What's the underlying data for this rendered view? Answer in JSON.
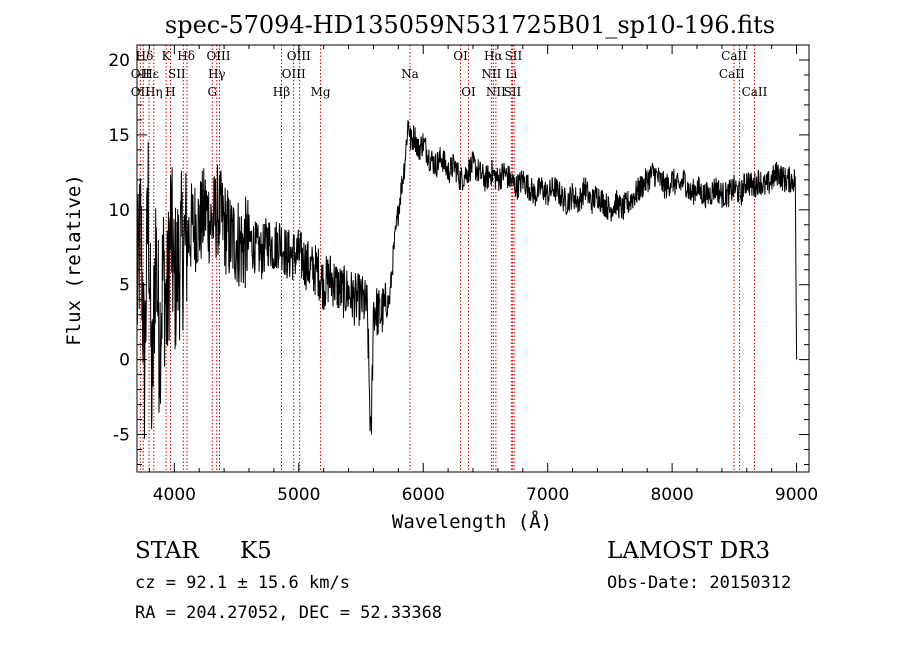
{
  "chart_data": {
    "type": "line",
    "title": "spec-57094-HD135059N531725B01_sp10-196.fits",
    "xlabel": "Wavelength (Å)",
    "ylabel": "Flux (relative)",
    "xlim": [
      3700,
      9100
    ],
    "ylim": [
      -7.5,
      21
    ],
    "xticks": [
      4000,
      5000,
      6000,
      7000,
      8000,
      9000
    ],
    "yticks": [
      -5,
      0,
      5,
      10,
      15,
      20
    ],
    "grid": false,
    "series": [
      {
        "name": "flux",
        "x": [
          3700,
          3730,
          3760,
          3790,
          3820,
          3850,
          3880,
          3910,
          3940,
          3970,
          4000,
          4050,
          4100,
          4150,
          4200,
          4250,
          4300,
          4350,
          4400,
          4450,
          4500,
          4550,
          4600,
          4650,
          4700,
          4750,
          4800,
          4850,
          4900,
          4950,
          5000,
          5050,
          5100,
          5150,
          5200,
          5250,
          5300,
          5350,
          5400,
          5450,
          5500,
          5550,
          5580,
          5600,
          5650,
          5700,
          5730,
          5760,
          5800,
          5850,
          5880,
          5900,
          5930,
          5960,
          6000,
          6050,
          6100,
          6150,
          6200,
          6250,
          6300,
          6350,
          6400,
          6450,
          6500,
          6550,
          6600,
          6650,
          6700,
          6750,
          6800,
          6850,
          6900,
          6950,
          7000,
          7050,
          7100,
          7150,
          7200,
          7250,
          7300,
          7350,
          7400,
          7450,
          7500,
          7550,
          7600,
          7650,
          7700,
          7750,
          7800,
          7850,
          7900,
          7950,
          8000,
          8050,
          8100,
          8150,
          8200,
          8250,
          8300,
          8350,
          8400,
          8450,
          8500,
          8550,
          8600,
          8650,
          8700,
          8750,
          8800,
          8850,
          8900,
          8950,
          8990,
          9000
        ],
        "y": [
          4,
          9,
          -1,
          11,
          -3,
          8,
          1,
          6,
          3,
          9,
          5,
          7,
          8,
          9,
          9,
          10,
          9,
          10,
          9,
          8,
          8,
          7.5,
          8,
          7.5,
          7,
          8,
          7.5,
          8,
          7,
          7,
          7,
          6.5,
          6,
          6,
          5,
          5.5,
          5,
          4.5,
          4.5,
          4,
          4,
          3.5,
          -6,
          3.5,
          3,
          3.5,
          4,
          7,
          10,
          13,
          16,
          14.5,
          15,
          14,
          14.5,
          13.5,
          13,
          13.5,
          12.5,
          13,
          12,
          12.5,
          13,
          12.5,
          12,
          12.5,
          12,
          12.5,
          12,
          11.5,
          12,
          11.5,
          11,
          11.5,
          11,
          11.5,
          11,
          10.5,
          11,
          10.5,
          11.5,
          10.5,
          11,
          10.5,
          10,
          10.5,
          10,
          10.5,
          11,
          11.5,
          12,
          12.5,
          12,
          11.5,
          12,
          11.5,
          12,
          11,
          11.5,
          11,
          11,
          11.5,
          11,
          11,
          11.5,
          11,
          12,
          11.5,
          12,
          11.5,
          12,
          12.5,
          12,
          12,
          12,
          0
        ]
      }
    ],
    "lines": [
      {
        "label": "Hδ",
        "x": 3750
      },
      {
        "label": "OII",
        "x": 3727
      },
      {
        "label": "Hε",
        "x": 3797
      },
      {
        "label": "Hη",
        "x": 3835
      },
      {
        "label": "K",
        "x": 3934
      },
      {
        "label": "H",
        "x": 3969
      },
      {
        "label": "Hδ",
        "x": 4102
      },
      {
        "label": "SII",
        "x": 4072
      },
      {
        "label": "OIII",
        "x": 4363
      },
      {
        "label": "Hγ",
        "x": 4341
      },
      {
        "label": "G",
        "x": 4305
      },
      {
        "label": "Hβ",
        "x": 4861
      },
      {
        "label": "OIII",
        "x": 4959
      },
      {
        "label": "OIII",
        "x": 5007
      },
      {
        "label": "Mg",
        "x": 5175
      },
      {
        "label": "Na",
        "x": 5893
      },
      {
        "label": "OI",
        "x": 6300
      },
      {
        "label": "OI",
        "x": 6364
      },
      {
        "label": "Hα",
        "x": 6563
      },
      {
        "label": "NII",
        "x": 6548
      },
      {
        "label": "NII",
        "x": 6584
      },
      {
        "label": "SII",
        "x": 6717
      },
      {
        "label": "SII",
        "x": 6731
      },
      {
        "label": "Li",
        "x": 6708
      },
      {
        "label": "CaII",
        "x": 8498
      },
      {
        "label": "CaII",
        "x": 8542
      },
      {
        "label": "CaII",
        "x": 8662
      }
    ],
    "line_labels": [
      {
        "text": "Hδ",
        "x": 3760,
        "row": 1
      },
      {
        "text": "K",
        "x": 3934,
        "row": 1
      },
      {
        "text": "Hδ",
        "x": 4095,
        "row": 1
      },
      {
        "text": "OIII",
        "x": 4355,
        "row": 1
      },
      {
        "text": "OIII",
        "x": 5000,
        "row": 1
      },
      {
        "text": "OI",
        "x": 6300,
        "row": 1
      },
      {
        "text": "Hα",
        "x": 6563,
        "row": 1
      },
      {
        "text": "SII",
        "x": 6725,
        "row": 1
      },
      {
        "text": "CaII",
        "x": 8498,
        "row": 1
      },
      {
        "text": "OII",
        "x": 3727,
        "row": 2
      },
      {
        "text": "Hε",
        "x": 3810,
        "row": 2
      },
      {
        "text": "SII",
        "x": 4020,
        "row": 2
      },
      {
        "text": "Hγ",
        "x": 4341,
        "row": 2
      },
      {
        "text": "OIII",
        "x": 4959,
        "row": 2
      },
      {
        "text": "Na",
        "x": 5893,
        "row": 2
      },
      {
        "text": "NII",
        "x": 6548,
        "row": 2
      },
      {
        "text": "Li",
        "x": 6708,
        "row": 2
      },
      {
        "text": "CaII",
        "x": 8480,
        "row": 2
      },
      {
        "text": "OII",
        "x": 3727,
        "row": 3
      },
      {
        "text": "Hη",
        "x": 3835,
        "row": 3
      },
      {
        "text": "H",
        "x": 3969,
        "row": 3
      },
      {
        "text": "G",
        "x": 4305,
        "row": 3
      },
      {
        "text": "Hβ",
        "x": 4861,
        "row": 3
      },
      {
        "text": "Mg",
        "x": 5175,
        "row": 3
      },
      {
        "text": "OI",
        "x": 6364,
        "row": 3
      },
      {
        "text": "NII",
        "x": 6584,
        "row": 3
      },
      {
        "text": "SII",
        "x": 6717,
        "row": 3
      },
      {
        "text": "CaII",
        "x": 8662,
        "row": 3
      }
    ],
    "colors": {
      "spectrum": "#000000",
      "line_marker": "#cc0000"
    }
  },
  "info": {
    "class": "STAR",
    "subclass": "K5",
    "survey": "LAMOST DR3",
    "cz": "cz = 92.1 ± 15.6 km/s",
    "obs_date": "Obs-Date: 20150312",
    "coords": "RA = 204.27052, DEC =  52.33368"
  }
}
